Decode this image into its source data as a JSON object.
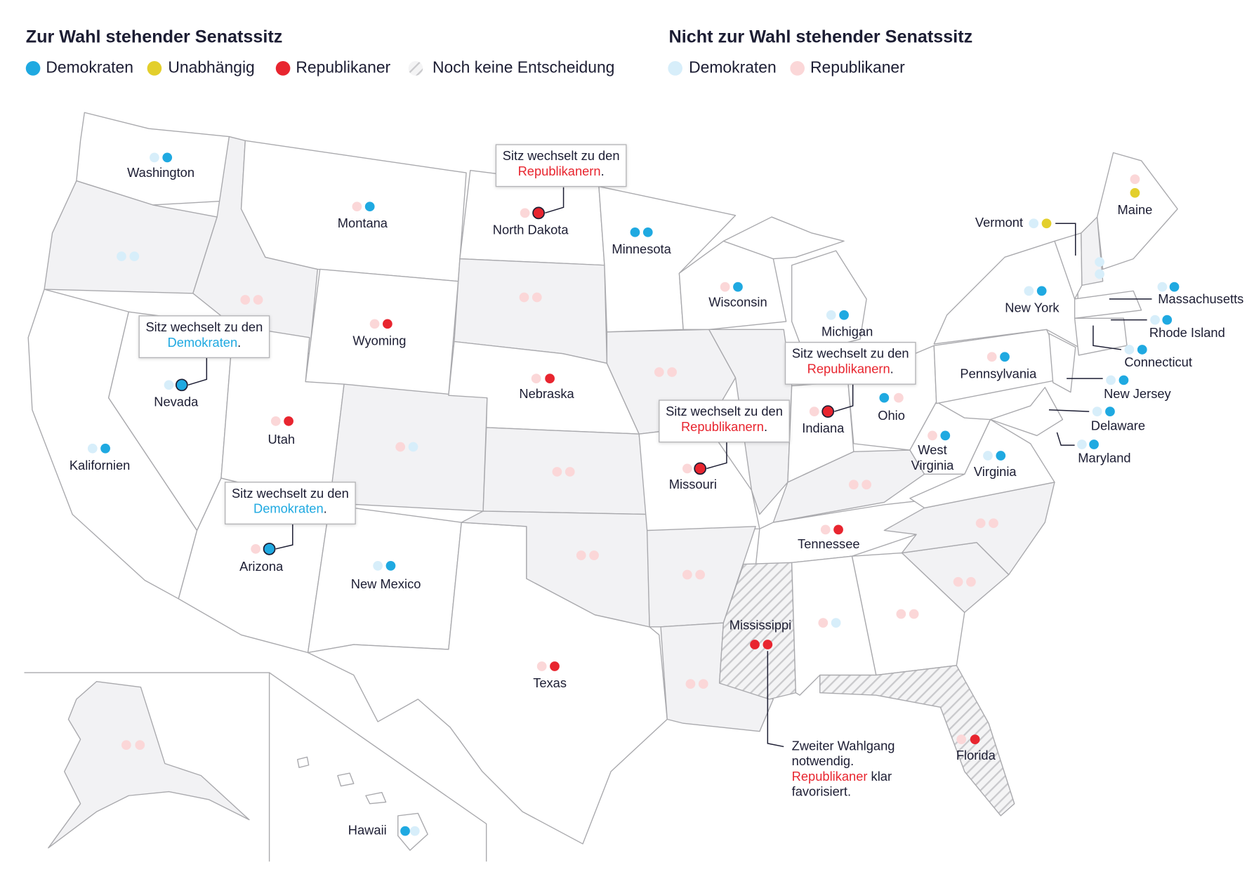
{
  "legend": {
    "up_title": "Zur Wahl stehender Senatssitz",
    "up_items": [
      {
        "label": "Demokraten",
        "color": "#1fa9e1"
      },
      {
        "label": "Unabhängig",
        "color": "#e3cf2c"
      },
      {
        "label": "Republikaner",
        "color": "#e8252f"
      },
      {
        "label": "Noch keine Entscheidung",
        "color": "url(#hatch)"
      }
    ],
    "not_title": "Nicht zur Wahl stehender Senatssitz",
    "not_items": [
      {
        "label": "Demokraten",
        "color": "#d7eefa"
      },
      {
        "label": "Republikaner",
        "color": "#fbd7d8"
      }
    ]
  },
  "states": [
    {
      "label": "Washington",
      "seats": [
        "#d7eefa",
        "#1fa9e1"
      ]
    },
    {
      "label": "Montana",
      "seats": [
        "#fbd7d8",
        "#1fa9e1"
      ]
    },
    {
      "label": "North Dakota",
      "seats": [
        "#fbd7d8",
        "#e8252f"
      ],
      "changed": true
    },
    {
      "label": "Minnesota",
      "seats": [
        "#1fa9e1",
        "#1fa9e1"
      ]
    },
    {
      "label": "Wisconsin",
      "seats": [
        "#fbd7d8",
        "#1fa9e1"
      ]
    },
    {
      "label": "Michigan",
      "seats": [
        "#d7eefa",
        "#1fa9e1"
      ]
    },
    {
      "label": "Wyoming",
      "seats": [
        "#fbd7d8",
        "#e8252f"
      ]
    },
    {
      "label": "Nevada",
      "seats": [
        "#d7eefa",
        "#1fa9e1"
      ],
      "changed": true
    },
    {
      "label": "Utah",
      "seats": [
        "#fbd7d8",
        "#e8252f"
      ]
    },
    {
      "label": "Nebraska",
      "seats": [
        "#fbd7d8",
        "#e8252f"
      ]
    },
    {
      "label": "Indiana",
      "seats": [
        "#fbd7d8",
        "#e8252f"
      ],
      "changed": true
    },
    {
      "label": "Ohio",
      "seats": [
        "#1fa9e1",
        "#fbd7d8"
      ]
    },
    {
      "label": "Pennsylvania",
      "seats": [
        "#fbd7d8",
        "#1fa9e1"
      ]
    },
    {
      "label": "New York",
      "seats": [
        "#d7eefa",
        "#1fa9e1"
      ]
    },
    {
      "label": "Vermont",
      "seats": [
        "#d7eefa",
        "#e3cf2c"
      ]
    },
    {
      "label": "Maine",
      "seats": [
        "#fbd7d8",
        "#e3cf2c"
      ]
    },
    {
      "label": "Massachusetts",
      "seats": [
        "#d7eefa",
        "#1fa9e1"
      ]
    },
    {
      "label": "Rhode Island",
      "seats": [
        "#d7eefa",
        "#1fa9e1"
      ]
    },
    {
      "label": "Connecticut",
      "seats": [
        "#d7eefa",
        "#1fa9e1"
      ]
    },
    {
      "label": "New Jersey",
      "seats": [
        "#d7eefa",
        "#1fa9e1"
      ]
    },
    {
      "label": "Delaware",
      "seats": [
        "#d7eefa",
        "#1fa9e1"
      ]
    },
    {
      "label": "Maryland",
      "seats": [
        "#d7eefa",
        "#1fa9e1"
      ]
    },
    {
      "label": [
        "West",
        "Virginia"
      ],
      "seats": [
        "#fbd7d8",
        "#1fa9e1"
      ]
    },
    {
      "label": "Virginia",
      "seats": [
        "#d7eefa",
        "#1fa9e1"
      ]
    },
    {
      "label": "Kalifornien",
      "seats": [
        "#d7eefa",
        "#1fa9e1"
      ]
    },
    {
      "label": "Arizona",
      "seats": [
        "#fbd7d8",
        "#1fa9e1"
      ],
      "changed": true
    },
    {
      "label": "New Mexico",
      "seats": [
        "#d7eefa",
        "#1fa9e1"
      ]
    },
    {
      "label": "Missouri",
      "seats": [
        "#fbd7d8",
        "#e8252f"
      ],
      "changed": true
    },
    {
      "label": "Tennessee",
      "seats": [
        "#fbd7d8",
        "#e8252f"
      ]
    },
    {
      "label": "Texas",
      "seats": [
        "#fbd7d8",
        "#e8252f"
      ]
    },
    {
      "label": "Mississippi",
      "seats": [
        "#e8252f",
        "#e8252f"
      ]
    },
    {
      "label": "Florida",
      "seats": [
        "#fbd7d8",
        "#e8252f"
      ]
    },
    {
      "label": "Hawaii",
      "seats": [
        "#1fa9e1",
        "#d7eefa"
      ]
    }
  ],
  "unlabeled_states": [
    {
      "seats": [
        "#d7eefa",
        "#d7eefa"
      ]
    },
    {
      "seats": [
        "#fbd7d8",
        "#fbd7d8"
      ]
    },
    {
      "seats": [
        "#fbd7d8",
        "#fbd7d8"
      ]
    },
    {
      "seats": [
        "#fbd7d8",
        "#fbd7d8"
      ]
    },
    {
      "seats": [
        "#fbd7d8",
        "#d7eefa"
      ]
    },
    {
      "seats": [
        "#fbd7d8",
        "#fbd7d8"
      ]
    },
    {
      "seats": [
        "#fbd7d8",
        "#fbd7d8"
      ]
    },
    {
      "seats": [
        "#fbd7d8",
        "#fbd7d8"
      ]
    },
    {
      "seats": [
        "#fbd7d8",
        "#fbd7d8"
      ]
    },
    {
      "seats": [
        "#fbd7d8",
        "#fbd7d8"
      ]
    },
    {
      "seats": [
        "#fbd7d8",
        "#fbd7d8"
      ]
    },
    {
      "seats": [
        "#fbd7d8",
        "#fbd7d8"
      ]
    },
    {
      "seats": [
        "#fbd7d8",
        "#fbd7d8"
      ]
    },
    {
      "seats": [
        "#fbd7d8",
        "#d7eefa"
      ]
    },
    {
      "seats": [
        "#fbd7d8",
        "#fbd7d8"
      ]
    },
    {
      "seats": [
        "#d7eefa",
        "#d7eefa"
      ]
    }
  ],
  "callouts": [
    {
      "text": "Sitz wechselt zu den",
      "party": "Republikanern",
      "end": ".",
      "party_color": "#e8252f"
    },
    {
      "text": "Sitz wechselt zu den",
      "party": "Demokraten",
      "end": ".",
      "party_color": "#1fa9e1"
    },
    {
      "text": "Sitz wechselt zu den",
      "party": "Demokraten",
      "end": ".",
      "party_color": "#1fa9e1"
    },
    {
      "text": "Sitz wechselt zu den",
      "party": "Republikanern",
      "end": ".",
      "party_color": "#e8252f"
    },
    {
      "text": "Sitz wechselt zu den",
      "party": "Republikanern",
      "end": ".",
      "party_color": "#e8252f"
    }
  ],
  "note": {
    "lines": [
      "Zweiter Wahlgang",
      "notwendig."
    ],
    "party": "Republikaner",
    "rest": " klar",
    "last": "favorisiert.",
    "party_color": "#e8252f"
  }
}
